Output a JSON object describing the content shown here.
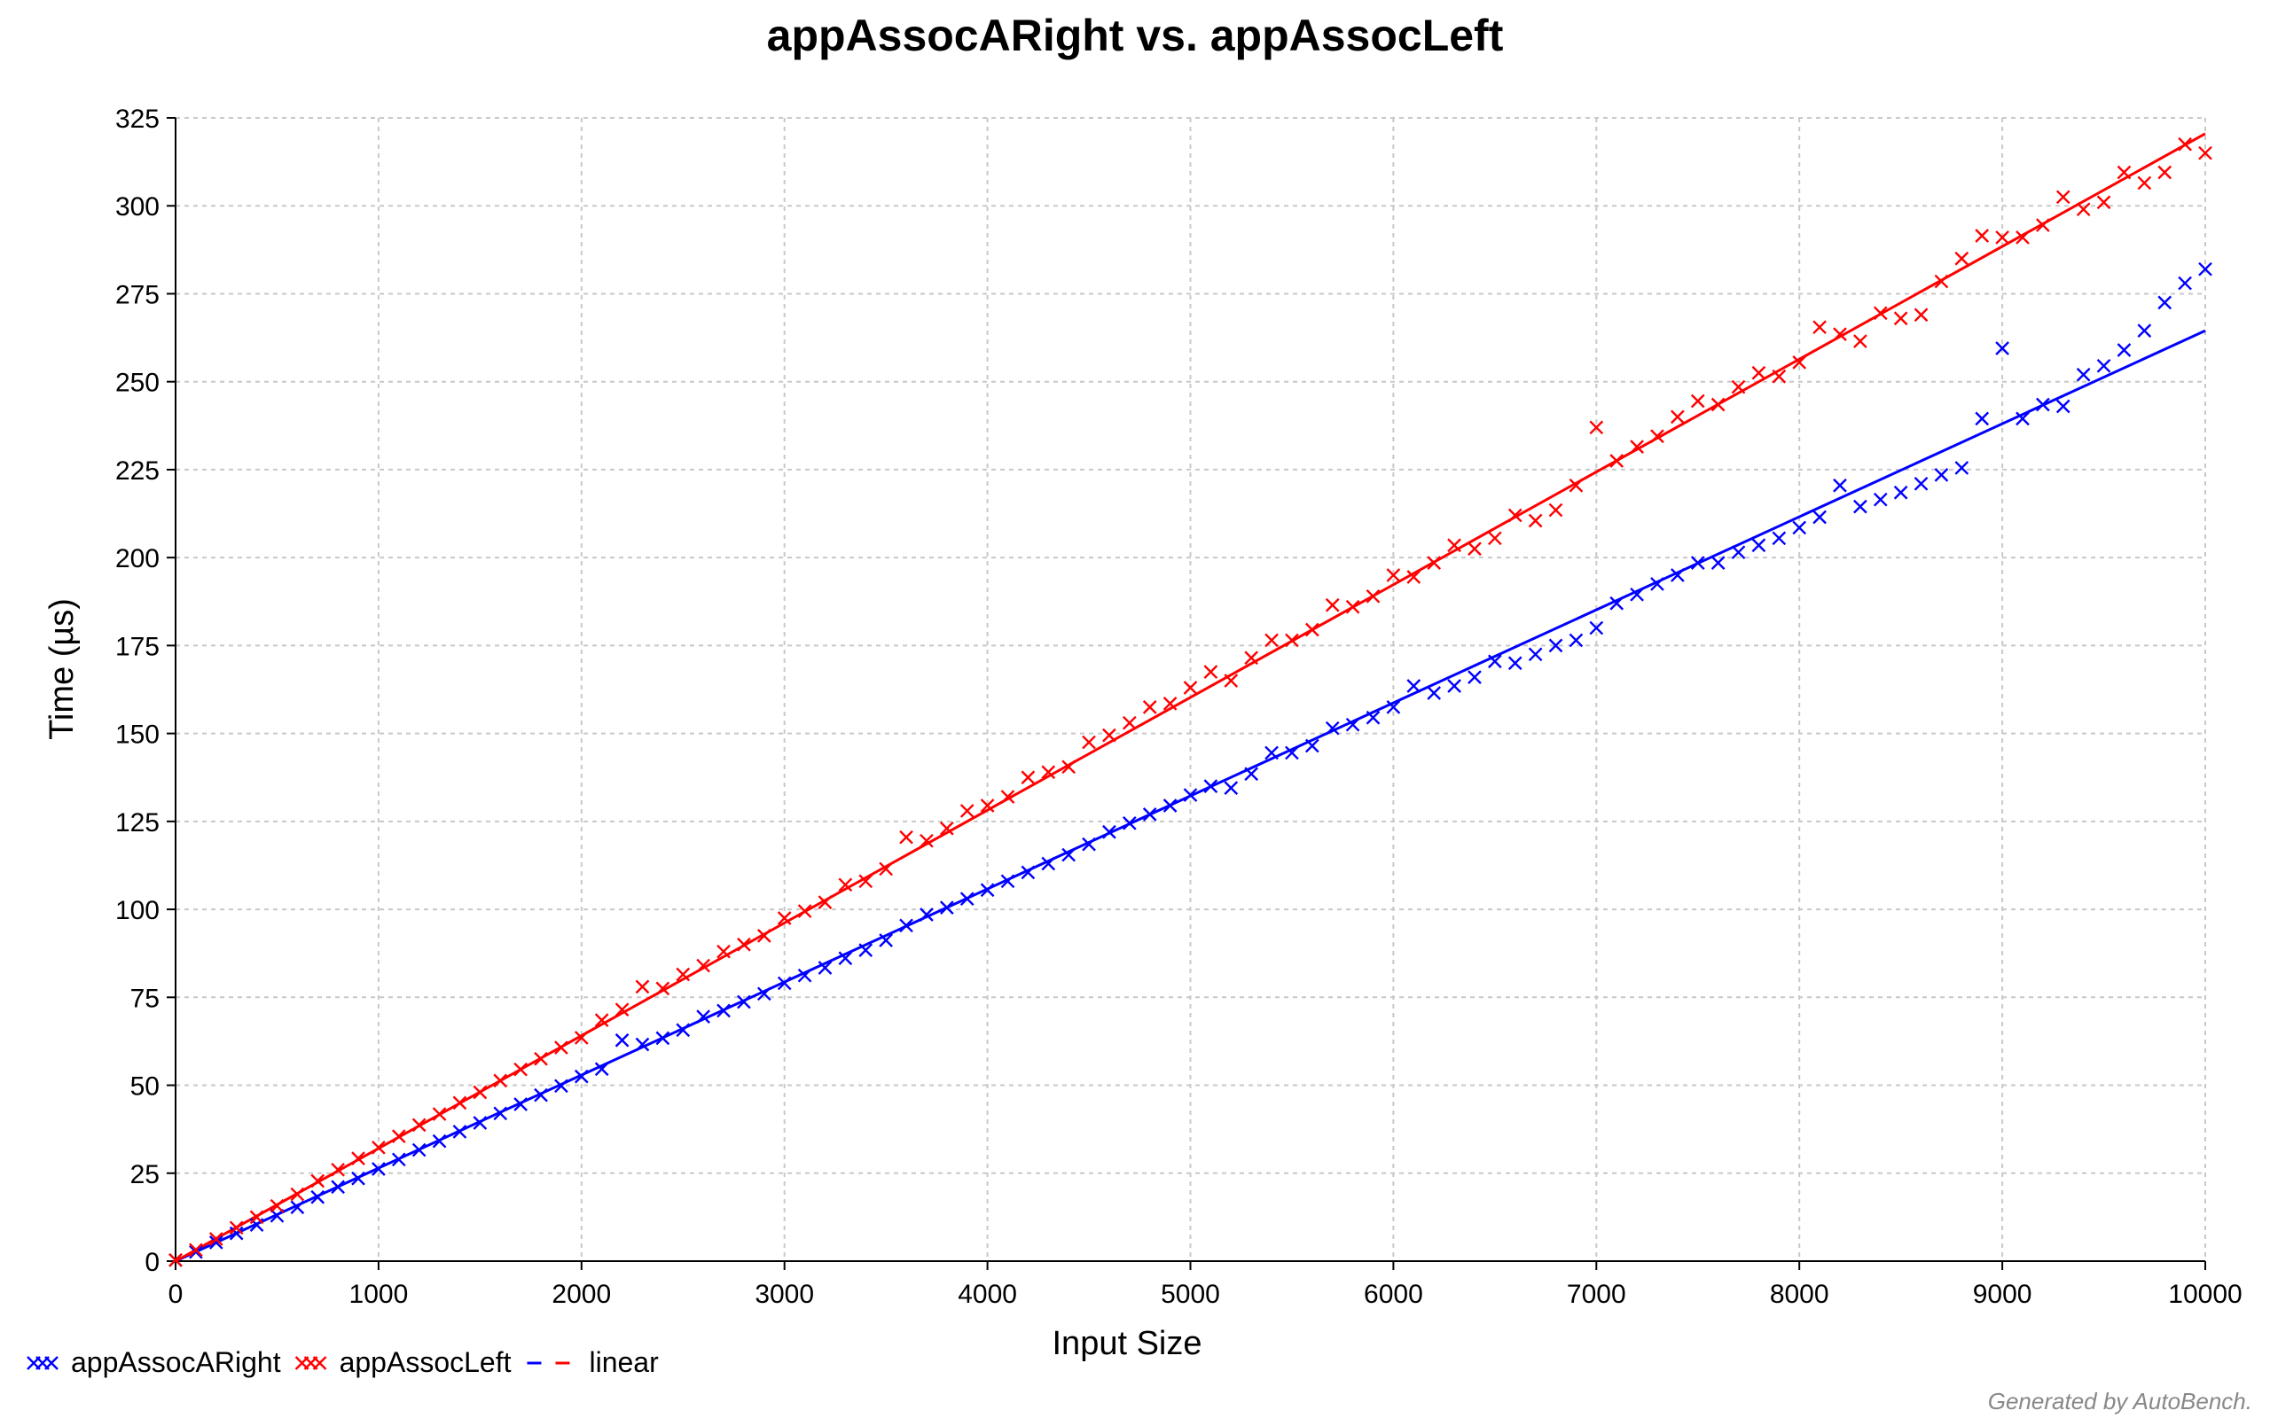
{
  "chart_data": {
    "type": "scatter",
    "title": "appAssocARight vs. appAssocLeft",
    "xlabel": "Input Size",
    "ylabel": "Time (µs)",
    "xlim": [
      0,
      10000
    ],
    "ylim": [
      0,
      325
    ],
    "xticks": [
      0,
      1000,
      2000,
      3000,
      4000,
      5000,
      6000,
      7000,
      8000,
      9000,
      10000
    ],
    "yticks": [
      0,
      25,
      50,
      75,
      100,
      125,
      150,
      175,
      200,
      225,
      250,
      275,
      300,
      325
    ],
    "grid": true,
    "legend_position": "bottom-left",
    "series": [
      {
        "name": "appAssocARight",
        "color": "#0000ff",
        "marker": "x",
        "fit": "linear",
        "fit_points": [
          [
            0,
            0
          ],
          [
            10000,
            264.5
          ]
        ],
        "points": [
          [
            0,
            0.3
          ],
          [
            100,
            2.6
          ],
          [
            200,
            5.3
          ],
          [
            300,
            7.9
          ],
          [
            400,
            10.3
          ],
          [
            500,
            12.9
          ],
          [
            600,
            15.3
          ],
          [
            700,
            18.2
          ],
          [
            800,
            21.1
          ],
          [
            900,
            23.5
          ],
          [
            1000,
            26.2
          ],
          [
            1100,
            28.9
          ],
          [
            1200,
            31.6
          ],
          [
            1300,
            34.1
          ],
          [
            1400,
            36.8
          ],
          [
            1500,
            39.3
          ],
          [
            1600,
            42.0
          ],
          [
            1700,
            44.6
          ],
          [
            1800,
            47.2
          ],
          [
            1900,
            49.8
          ],
          [
            2000,
            52.5
          ],
          [
            2100,
            54.6
          ],
          [
            2200,
            62.8
          ],
          [
            2300,
            61.6
          ],
          [
            2400,
            63.4
          ],
          [
            2500,
            65.7
          ],
          [
            2600,
            69.5
          ],
          [
            2700,
            71.2
          ],
          [
            2800,
            73.7
          ],
          [
            2900,
            76.0
          ],
          [
            3000,
            79.0
          ],
          [
            3100,
            81.2
          ],
          [
            3200,
            83.4
          ],
          [
            3300,
            86.1
          ],
          [
            3400,
            88.4
          ],
          [
            3500,
            91.2
          ],
          [
            3600,
            95.4
          ],
          [
            3700,
            98.5
          ],
          [
            3800,
            100.5
          ],
          [
            3900,
            103.0
          ],
          [
            4000,
            105.5
          ],
          [
            4100,
            108.0
          ],
          [
            4200,
            110.5
          ],
          [
            4300,
            113.0
          ],
          [
            4400,
            115.5
          ],
          [
            4500,
            118.5
          ],
          [
            4600,
            122.0
          ],
          [
            4700,
            124.5
          ],
          [
            4800,
            127.0
          ],
          [
            4900,
            129.5
          ],
          [
            5000,
            132.5
          ],
          [
            5100,
            135.0
          ],
          [
            5200,
            134.5
          ],
          [
            5300,
            138.5
          ],
          [
            5400,
            144.5
          ],
          [
            5500,
            144.5
          ],
          [
            5600,
            146.5
          ],
          [
            5700,
            151.5
          ],
          [
            5800,
            152.5
          ],
          [
            5900,
            154.5
          ],
          [
            6000,
            157.5
          ],
          [
            6100,
            163.5
          ],
          [
            6200,
            161.5
          ],
          [
            6300,
            163.5
          ],
          [
            6400,
            166.0
          ],
          [
            6500,
            170.5
          ],
          [
            6600,
            170.0
          ],
          [
            6700,
            172.5
          ],
          [
            6800,
            175.0
          ],
          [
            6900,
            176.5
          ],
          [
            7000,
            180.0
          ],
          [
            7100,
            187.0
          ],
          [
            7200,
            189.5
          ],
          [
            7300,
            192.5
          ],
          [
            7400,
            195.0
          ],
          [
            7500,
            198.5
          ],
          [
            7600,
            198.5
          ],
          [
            7700,
            201.5
          ],
          [
            7800,
            203.5
          ],
          [
            7900,
            205.5
          ],
          [
            8000,
            208.5
          ],
          [
            8100,
            211.5
          ],
          [
            8200,
            220.5
          ],
          [
            8300,
            214.5
          ],
          [
            8400,
            216.5
          ],
          [
            8500,
            218.5
          ],
          [
            8600,
            221.0
          ],
          [
            8700,
            223.5
          ],
          [
            8800,
            225.5
          ],
          [
            8900,
            239.5
          ],
          [
            9000,
            259.5
          ],
          [
            9100,
            239.5
          ],
          [
            9200,
            243.5
          ],
          [
            9300,
            243.0
          ],
          [
            9400,
            252.0
          ],
          [
            9500,
            254.5
          ],
          [
            9600,
            259.0
          ],
          [
            9700,
            264.5
          ],
          [
            9800,
            272.5
          ],
          [
            9900,
            278.0
          ],
          [
            10000,
            282.0
          ]
        ]
      },
      {
        "name": "appAssocLeft",
        "color": "#ff0000",
        "marker": "x",
        "fit": "linear",
        "fit_points": [
          [
            0,
            0
          ],
          [
            10000,
            320.5
          ]
        ],
        "points": [
          [
            0,
            0.3
          ],
          [
            100,
            3.2
          ],
          [
            200,
            6.3
          ],
          [
            300,
            9.5
          ],
          [
            400,
            12.5
          ],
          [
            500,
            15.7
          ],
          [
            600,
            19.0
          ],
          [
            700,
            22.8
          ],
          [
            800,
            26.0
          ],
          [
            900,
            29.2
          ],
          [
            1000,
            32.3
          ],
          [
            1100,
            35.5
          ],
          [
            1200,
            38.7
          ],
          [
            1300,
            41.8
          ],
          [
            1400,
            45.0
          ],
          [
            1500,
            48.0
          ],
          [
            1600,
            51.3
          ],
          [
            1700,
            54.5
          ],
          [
            1800,
            57.5
          ],
          [
            1900,
            60.7
          ],
          [
            2000,
            63.5
          ],
          [
            2100,
            68.5
          ],
          [
            2200,
            71.5
          ],
          [
            2300,
            78.0
          ],
          [
            2400,
            77.5
          ],
          [
            2500,
            81.5
          ],
          [
            2600,
            84.0
          ],
          [
            2700,
            88.0
          ],
          [
            2800,
            90.0
          ],
          [
            2900,
            92.5
          ],
          [
            3000,
            97.5
          ],
          [
            3100,
            99.5
          ],
          [
            3200,
            102.0
          ],
          [
            3300,
            107.0
          ],
          [
            3400,
            108.0
          ],
          [
            3500,
            111.5
          ],
          [
            3600,
            120.5
          ],
          [
            3700,
            119.5
          ],
          [
            3800,
            123.0
          ],
          [
            3900,
            128.0
          ],
          [
            4000,
            129.5
          ],
          [
            4100,
            132.0
          ],
          [
            4200,
            137.5
          ],
          [
            4300,
            139.0
          ],
          [
            4400,
            140.5
          ],
          [
            4500,
            147.5
          ],
          [
            4600,
            149.5
          ],
          [
            4700,
            153.0
          ],
          [
            4800,
            157.5
          ],
          [
            4900,
            158.5
          ],
          [
            5000,
            163.0
          ],
          [
            5100,
            167.5
          ],
          [
            5200,
            165.0
          ],
          [
            5300,
            171.5
          ],
          [
            5400,
            176.5
          ],
          [
            5500,
            176.5
          ],
          [
            5600,
            179.5
          ],
          [
            5700,
            186.5
          ],
          [
            5800,
            186.0
          ],
          [
            5900,
            189.0
          ],
          [
            6000,
            195.0
          ],
          [
            6100,
            194.5
          ],
          [
            6200,
            198.5
          ],
          [
            6300,
            203.5
          ],
          [
            6400,
            202.5
          ],
          [
            6500,
            205.5
          ],
          [
            6600,
            212.0
          ],
          [
            6700,
            210.5
          ],
          [
            6800,
            213.5
          ],
          [
            6900,
            220.5
          ],
          [
            7000,
            237.0
          ],
          [
            7100,
            227.5
          ],
          [
            7200,
            231.5
          ],
          [
            7300,
            234.5
          ],
          [
            7400,
            240.0
          ],
          [
            7500,
            244.5
          ],
          [
            7600,
            243.5
          ],
          [
            7700,
            248.5
          ],
          [
            7800,
            252.5
          ],
          [
            7900,
            251.5
          ],
          [
            8000,
            255.5
          ],
          [
            8100,
            265.5
          ],
          [
            8200,
            263.5
          ],
          [
            8300,
            261.5
          ],
          [
            8400,
            269.5
          ],
          [
            8500,
            268.0
          ],
          [
            8600,
            269.0
          ],
          [
            8700,
            278.5
          ],
          [
            8800,
            285.0
          ],
          [
            8900,
            291.5
          ],
          [
            9000,
            291.0
          ],
          [
            9100,
            291.0
          ],
          [
            9200,
            294.5
          ],
          [
            9300,
            302.5
          ],
          [
            9400,
            299.0
          ],
          [
            9500,
            301.0
          ],
          [
            9600,
            309.5
          ],
          [
            9700,
            306.5
          ],
          [
            9800,
            309.5
          ],
          [
            9900,
            317.5
          ],
          [
            10000,
            315.0
          ]
        ]
      }
    ],
    "legend_items": [
      {
        "label": "appAssocARight",
        "kind": "marker",
        "color": "#0000ff"
      },
      {
        "label": "appAssocLeft",
        "kind": "marker",
        "color": "#ff0000"
      },
      {
        "label": "linear",
        "kind": "line",
        "colors": [
          "#0000ff",
          "#ff0000"
        ]
      }
    ],
    "footer": "Generated by AutoBench."
  }
}
